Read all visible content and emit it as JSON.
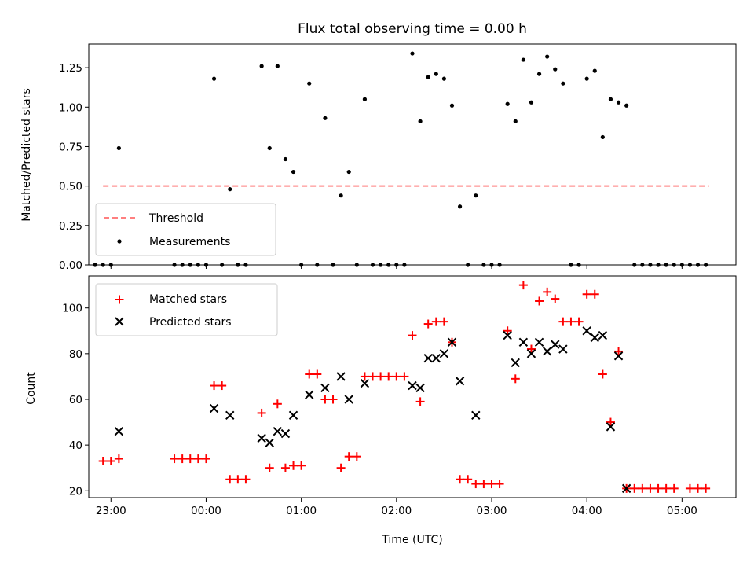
{
  "chart_data": [
    {
      "type": "scatter",
      "title": "Flux total observing time = 0.00 h",
      "xlabel": "",
      "ylabel": "Matched/Predicted stars",
      "ylim": [
        0,
        1.4
      ],
      "yticks": [
        0.0,
        0.25,
        0.5,
        0.75,
        1.0,
        1.25
      ],
      "ytick_labels": [
        "0.00",
        "0.25",
        "0.50",
        "0.75",
        "1.00",
        "1.25"
      ],
      "legend": {
        "placement": "lower-left",
        "entries": [
          "Threshold",
          "Measurements"
        ]
      },
      "threshold": {
        "name": "Threshold",
        "y": 0.5,
        "x_range": [
          "22:55",
          "05:17"
        ],
        "color": "#ff7f7f",
        "style": "dashed"
      },
      "series": [
        {
          "name": "Measurements",
          "color": "#000000",
          "marker": "dot",
          "points": [
            [
              "22:50",
              0
            ],
            [
              "22:55",
              0
            ],
            [
              "23:00",
              0
            ],
            [
              "23:05",
              0.74
            ],
            [
              "23:40",
              0
            ],
            [
              "23:45",
              0
            ],
            [
              "23:50",
              0
            ],
            [
              "23:55",
              0
            ],
            [
              "00:00",
              0
            ],
            [
              "00:05",
              1.18
            ],
            [
              "00:10",
              0
            ],
            [
              "00:15",
              0.48
            ],
            [
              "00:20",
              0
            ],
            [
              "00:25",
              0
            ],
            [
              "00:35",
              1.26
            ],
            [
              "00:40",
              0.74
            ],
            [
              "00:45",
              1.26
            ],
            [
              "00:50",
              0.67
            ],
            [
              "00:55",
              0.59
            ],
            [
              "01:00",
              0
            ],
            [
              "01:05",
              1.15
            ],
            [
              "01:10",
              0
            ],
            [
              "01:15",
              0.93
            ],
            [
              "01:20",
              0
            ],
            [
              "01:25",
              0.44
            ],
            [
              "01:30",
              0.59
            ],
            [
              "01:35",
              0
            ],
            [
              "01:40",
              1.05
            ],
            [
              "01:45",
              0
            ],
            [
              "01:50",
              0
            ],
            [
              "01:55",
              0
            ],
            [
              "02:00",
              0
            ],
            [
              "02:05",
              0
            ],
            [
              "02:10",
              1.34
            ],
            [
              "02:15",
              0.91
            ],
            [
              "02:20",
              1.19
            ],
            [
              "02:25",
              1.21
            ],
            [
              "02:30",
              1.18
            ],
            [
              "02:35",
              1.01
            ],
            [
              "02:40",
              0.37
            ],
            [
              "02:45",
              0
            ],
            [
              "02:50",
              0.44
            ],
            [
              "02:55",
              0
            ],
            [
              "03:00",
              0
            ],
            [
              "03:05",
              0
            ],
            [
              "03:10",
              1.02
            ],
            [
              "03:15",
              0.91
            ],
            [
              "03:20",
              1.3
            ],
            [
              "03:25",
              1.03
            ],
            [
              "03:30",
              1.21
            ],
            [
              "03:35",
              1.32
            ],
            [
              "03:40",
              1.24
            ],
            [
              "03:45",
              1.15
            ],
            [
              "03:50",
              0
            ],
            [
              "03:55",
              0
            ],
            [
              "04:00",
              1.18
            ],
            [
              "04:05",
              1.23
            ],
            [
              "04:10",
              0.81
            ],
            [
              "04:15",
              1.05
            ],
            [
              "04:20",
              1.03
            ],
            [
              "04:25",
              1.01
            ],
            [
              "04:30",
              0
            ],
            [
              "04:35",
              0
            ],
            [
              "04:40",
              0
            ],
            [
              "04:45",
              0
            ],
            [
              "04:50",
              0
            ],
            [
              "04:55",
              0
            ],
            [
              "05:00",
              0
            ],
            [
              "05:05",
              0
            ],
            [
              "05:10",
              0
            ],
            [
              "05:15",
              0
            ]
          ]
        }
      ]
    },
    {
      "type": "scatter",
      "title": "",
      "xlabel": "Time (UTC)",
      "ylabel": "Count",
      "ylim": [
        17,
        114
      ],
      "yticks": [
        20,
        40,
        60,
        80,
        100
      ],
      "ytick_labels": [
        "20",
        "40",
        "60",
        "80",
        "100"
      ],
      "x_range": [
        "22:46",
        "05:34"
      ],
      "xticks": [
        "23:00",
        "00:00",
        "01:00",
        "02:00",
        "03:00",
        "04:00",
        "05:00"
      ],
      "xtick_labels": [
        "23:00",
        "00:00",
        "01:00",
        "02:00",
        "03:00",
        "04:00",
        "05:00"
      ],
      "legend": {
        "placement": "top-left",
        "entries": [
          "Matched stars",
          "Predicted stars"
        ]
      },
      "series": [
        {
          "name": "Matched stars",
          "color": "#ff0000",
          "marker": "plus",
          "points": [
            [
              "22:55",
              33
            ],
            [
              "23:00",
              33
            ],
            [
              "23:05",
              34
            ],
            [
              "23:40",
              34
            ],
            [
              "23:45",
              34
            ],
            [
              "23:50",
              34
            ],
            [
              "23:55",
              34
            ],
            [
              "00:00",
              34
            ],
            [
              "00:05",
              66
            ],
            [
              "00:10",
              66
            ],
            [
              "00:15",
              25
            ],
            [
              "00:20",
              25
            ],
            [
              "00:25",
              25
            ],
            [
              "00:35",
              54
            ],
            [
              "00:40",
              30
            ],
            [
              "00:45",
              58
            ],
            [
              "00:50",
              30
            ],
            [
              "00:55",
              31
            ],
            [
              "01:00",
              31
            ],
            [
              "01:05",
              71
            ],
            [
              "01:10",
              71
            ],
            [
              "01:15",
              60
            ],
            [
              "01:20",
              60
            ],
            [
              "01:25",
              30
            ],
            [
              "01:30",
              35
            ],
            [
              "01:35",
              35
            ],
            [
              "01:40",
              70
            ],
            [
              "01:45",
              70
            ],
            [
              "01:50",
              70
            ],
            [
              "01:55",
              70
            ],
            [
              "02:00",
              70
            ],
            [
              "02:05",
              70
            ],
            [
              "02:10",
              88
            ],
            [
              "02:15",
              59
            ],
            [
              "02:20",
              93
            ],
            [
              "02:25",
              94
            ],
            [
              "02:30",
              94
            ],
            [
              "02:35",
              85
            ],
            [
              "02:40",
              25
            ],
            [
              "02:45",
              25
            ],
            [
              "02:50",
              23
            ],
            [
              "02:55",
              23
            ],
            [
              "03:00",
              23
            ],
            [
              "03:05",
              23
            ],
            [
              "03:10",
              90
            ],
            [
              "03:15",
              69
            ],
            [
              "03:20",
              110
            ],
            [
              "03:25",
              82
            ],
            [
              "03:30",
              103
            ],
            [
              "03:35",
              107
            ],
            [
              "03:40",
              104
            ],
            [
              "03:45",
              94
            ],
            [
              "03:50",
              94
            ],
            [
              "03:55",
              94
            ],
            [
              "04:00",
              106
            ],
            [
              "04:05",
              106
            ],
            [
              "04:10",
              71
            ],
            [
              "04:15",
              50
            ],
            [
              "04:20",
              81
            ],
            [
              "04:25",
              21
            ],
            [
              "04:30",
              21
            ],
            [
              "04:35",
              21
            ],
            [
              "04:40",
              21
            ],
            [
              "04:45",
              21
            ],
            [
              "04:50",
              21
            ],
            [
              "04:55",
              21
            ],
            [
              "05:05",
              21
            ],
            [
              "05:10",
              21
            ],
            [
              "05:15",
              21
            ]
          ]
        },
        {
          "name": "Predicted stars",
          "color": "#000000",
          "marker": "x",
          "points": [
            [
              "23:05",
              46
            ],
            [
              "00:05",
              56
            ],
            [
              "00:15",
              53
            ],
            [
              "00:35",
              43
            ],
            [
              "00:40",
              41
            ],
            [
              "00:45",
              46
            ],
            [
              "00:50",
              45
            ],
            [
              "00:55",
              53
            ],
            [
              "01:05",
              62
            ],
            [
              "01:15",
              65
            ],
            [
              "01:25",
              70
            ],
            [
              "01:30",
              60
            ],
            [
              "01:40",
              67
            ],
            [
              "02:10",
              66
            ],
            [
              "02:15",
              65
            ],
            [
              "02:20",
              78
            ],
            [
              "02:25",
              78
            ],
            [
              "02:30",
              80
            ],
            [
              "02:35",
              85
            ],
            [
              "02:40",
              68
            ],
            [
              "02:50",
              53
            ],
            [
              "03:10",
              88
            ],
            [
              "03:15",
              76
            ],
            [
              "03:20",
              85
            ],
            [
              "03:25",
              80
            ],
            [
              "03:30",
              85
            ],
            [
              "03:35",
              81
            ],
            [
              "03:40",
              84
            ],
            [
              "03:45",
              82
            ],
            [
              "04:00",
              90
            ],
            [
              "04:05",
              87
            ],
            [
              "04:10",
              88
            ],
            [
              "04:15",
              48
            ],
            [
              "04:20",
              79
            ],
            [
              "04:25",
              21
            ]
          ]
        }
      ]
    }
  ]
}
